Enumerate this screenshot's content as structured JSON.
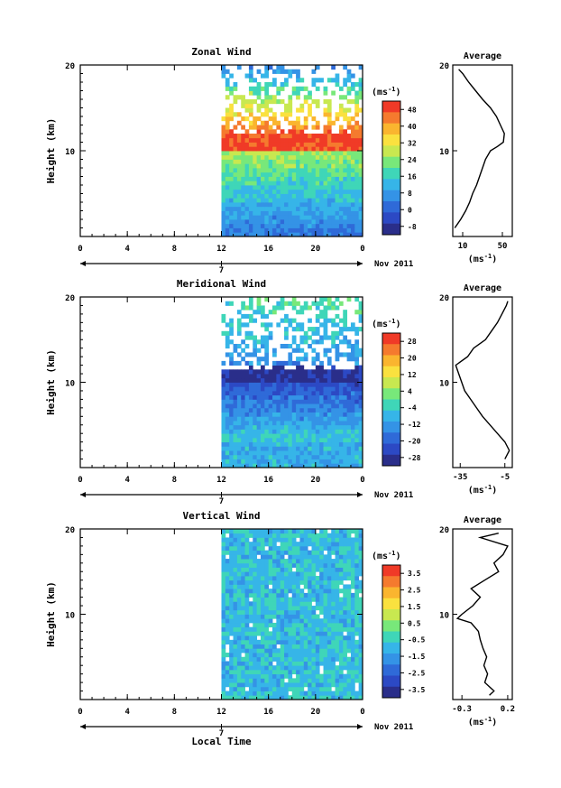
{
  "chart_data": [
    {
      "type": "heatmap",
      "title": "Zonal Wind",
      "ylabel": "Height (km)",
      "ylim": [
        0,
        20
      ],
      "yticks": [
        "10",
        "20"
      ],
      "xticks": [
        "0",
        "4",
        "8",
        "12",
        "16",
        "20",
        "0"
      ],
      "date_label": "7",
      "month_label": "Nov 2011",
      "data_start_hour": 12,
      "colorbar": {
        "unit": "(ms",
        "unit_exp": "-1",
        "unit_close": ")",
        "ticks": [
          "48",
          "40",
          "32",
          "24",
          "16",
          "8",
          "0",
          "-8"
        ],
        "colors": [
          "#f03a27",
          "#f57a2e",
          "#fab52f",
          "#fae13f",
          "#c8e850",
          "#78e87a",
          "#3fd6b8",
          "#36b5e8",
          "#3493e6",
          "#2f6ad8",
          "#2c49c4",
          "#2a2e8a"
        ]
      },
      "average": {
        "title": "Average",
        "xticks": [
          "10",
          "50"
        ],
        "xlabel": "(ms",
        "xlabel_exp": "-1",
        "xlabel_close": ")",
        "xlim": [
          0,
          60
        ],
        "profile_km": [
          1,
          2,
          3,
          4,
          5,
          6,
          7,
          8,
          9,
          10,
          10.5,
          11,
          12,
          13,
          14,
          15,
          16,
          17,
          18,
          19,
          19.5
        ],
        "profile_val": [
          2,
          8,
          13,
          17,
          20,
          24,
          27,
          30,
          33,
          38,
          45,
          51,
          52,
          48,
          44,
          38,
          30,
          23,
          16,
          10,
          6
        ]
      }
    },
    {
      "type": "heatmap",
      "title": "Meridional Wind",
      "ylabel": "Height (km)",
      "ylim": [
        0,
        20
      ],
      "yticks": [
        "10",
        "20"
      ],
      "xticks": [
        "0",
        "4",
        "8",
        "12",
        "16",
        "20",
        "0"
      ],
      "date_label": "7",
      "month_label": "Nov 2011",
      "data_start_hour": 12,
      "colorbar": {
        "unit": "(ms",
        "unit_exp": "-1",
        "unit_close": ")",
        "ticks": [
          "28",
          "20",
          "12",
          "4",
          "-4",
          "-12",
          "-20",
          "-28"
        ],
        "colors": [
          "#f03a27",
          "#f57a2e",
          "#fab52f",
          "#fae13f",
          "#c8e850",
          "#78e87a",
          "#3fd6b8",
          "#36b5e8",
          "#3493e6",
          "#2f6ad8",
          "#2c49c4",
          "#2a2e8a"
        ]
      },
      "average": {
        "title": "Average",
        "xticks": [
          "-35",
          "-5"
        ],
        "xlabel": "(ms",
        "xlabel_exp": "-1",
        "xlabel_close": ")",
        "xlim": [
          -40,
          0
        ],
        "profile_km": [
          1,
          2,
          3,
          4,
          5,
          6,
          7,
          8,
          9,
          10,
          11,
          12,
          13,
          14,
          15,
          16,
          17,
          18,
          19,
          19.5
        ],
        "profile_val": [
          -5,
          -2,
          -5,
          -10,
          -15,
          -20,
          -24,
          -28,
          -32,
          -34,
          -36,
          -38,
          -30,
          -26,
          -18,
          -14,
          -10,
          -7,
          -4,
          -3
        ]
      }
    },
    {
      "type": "heatmap",
      "title": "Vertical Wind",
      "ylabel": "Height (km)",
      "ylim": [
        0,
        20
      ],
      "yticks": [
        "10",
        "20"
      ],
      "xticks": [
        "0",
        "4",
        "8",
        "12",
        "16",
        "20",
        "0"
      ],
      "xlabel": "Local Time",
      "date_label": "7",
      "month_label": "Nov 2011",
      "data_start_hour": 12,
      "colorbar": {
        "unit": "(ms",
        "unit_exp": "-1",
        "unit_close": ")",
        "ticks": [
          "3.5",
          "2.5",
          "1.5",
          "0.5",
          "-0.5",
          "-1.5",
          "-2.5",
          "-3.5"
        ],
        "colors": [
          "#f03a27",
          "#f57a2e",
          "#fab52f",
          "#fae13f",
          "#c8e850",
          "#78e87a",
          "#3fd6b8",
          "#36b5e8",
          "#3493e6",
          "#2f6ad8",
          "#2c49c4",
          "#2a2e8a"
        ]
      },
      "average": {
        "title": "Average",
        "xticks": [
          "-0.3",
          "0.2"
        ],
        "xlabel": "(ms",
        "xlabel_exp": "-1",
        "xlabel_close": ")",
        "xlim": [
          -0.4,
          0.25
        ],
        "profile_km": [
          0.5,
          1,
          2,
          3,
          4,
          5,
          6,
          7,
          8,
          9,
          9.5,
          10,
          11,
          12,
          13,
          14,
          15,
          16,
          17,
          18,
          19,
          19.5
        ],
        "profile_val": [
          0.0,
          0.05,
          -0.05,
          -0.02,
          -0.06,
          -0.03,
          -0.07,
          -0.1,
          -0.12,
          -0.2,
          -0.35,
          -0.3,
          -0.18,
          -0.1,
          -0.2,
          -0.05,
          0.1,
          0.05,
          0.15,
          0.2,
          -0.1,
          0.1
        ]
      }
    }
  ]
}
